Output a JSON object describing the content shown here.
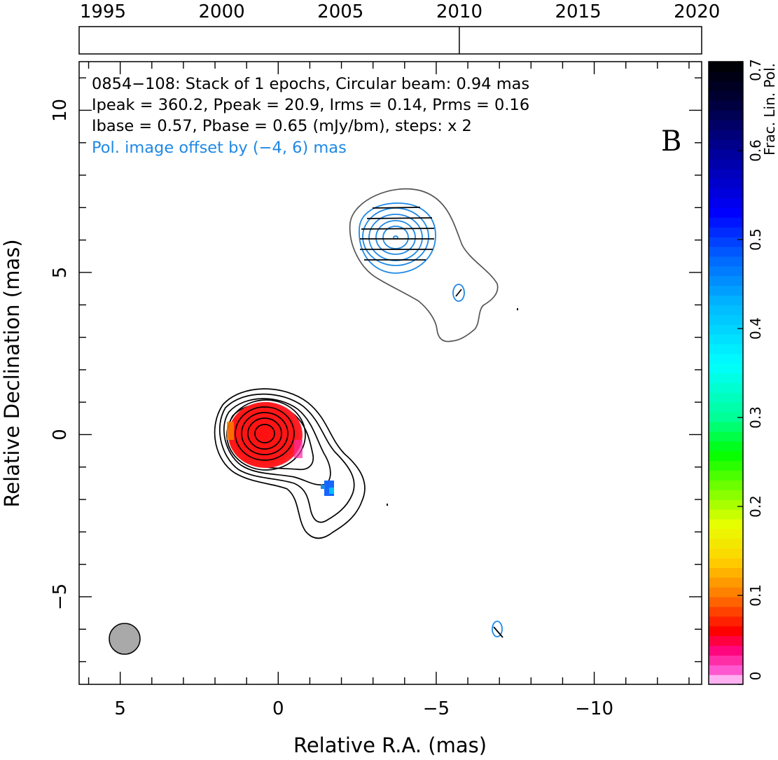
{
  "chart_data": [
    {
      "type": "timeline",
      "x_ticks": [
        1995,
        2000,
        2005,
        2010,
        2015,
        2020
      ],
      "xlim": [
        1994,
        2020.2
      ],
      "epochs": [
        2010.0
      ]
    },
    {
      "type": "contour_map",
      "xlabel": "Relative R.A. (mas)",
      "ylabel": "Relative Declination (mas)",
      "xlim": [
        6.3,
        -13.4
      ],
      "ylim": [
        -7.7,
        11.5
      ],
      "x_ticks": [
        5,
        0,
        -5,
        -10
      ],
      "y_ticks": [
        -5,
        0,
        5,
        10
      ],
      "annotation_lines": [
        "0854−108: Stack of 1 epochs, Circular beam: 0.94 mas",
        "Ipeak = 360.2, Ppeak = 20.9, Irms = 0.14, Prms = 0.16",
        "Ibase = 0.57, Pbase = 0.65 (mJy/bm), steps: x 2"
      ],
      "offset_note": "Pol. image offset by (−4, 6) mas",
      "panel_label": "B",
      "beam_center": [
        4.2,
        -6.3
      ],
      "beam_fwhm_mas": 0.94,
      "stokes_i_peak_center": [
        0.0,
        0.0
      ],
      "pol_component_center": [
        -4.0,
        6.0
      ],
      "colorbar": {
        "label": "Frac. Lin. Pol.",
        "ticks": [
          0,
          0.1,
          0.2,
          0.3,
          0.4,
          0.5,
          0.6,
          0.7
        ],
        "range": [
          0,
          0.7
        ]
      },
      "colors": {
        "stokes_i_contours": "#000000",
        "outer_contour": "#555555",
        "pol_contours": "#1e88e5",
        "core_fill": "#ff1a1a",
        "beam_fill": "#a9a9a9"
      }
    }
  ]
}
